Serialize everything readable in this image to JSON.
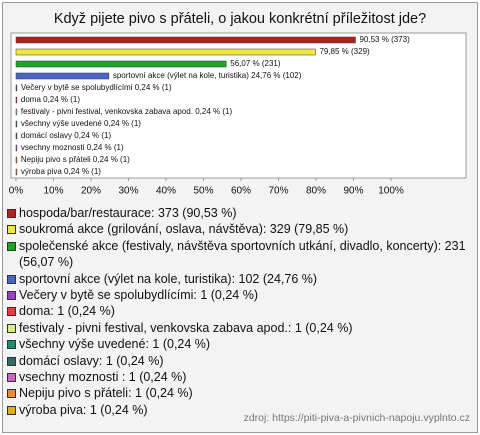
{
  "chart_data": {
    "type": "bar",
    "orientation": "horizontal",
    "title": "Když pijete pivo s přáteli, o jakou konkrétní příležitost jde?",
    "values": [
      90.53,
      79.85,
      56.07,
      24.76,
      0.24,
      0.24,
      0.24,
      0.24,
      0.24,
      0.24,
      0.24,
      0.24
    ],
    "value_labels": [
      "90,53 % (373)",
      "79,85 % (329)",
      "56,07 % (231)",
      "sportovní akce (výlet na kole, turistika) 24,76 % (102)",
      "Večery v bytě se spolubydlícími 0,24 % (1)",
      "doma 0,24 % (1)",
      "festivaly - pivni festival, venkovska zabava apod. 0,24 % (1)",
      "všechny výše uvedené 0,24 % (1)",
      "domácí oslavy 0,24 % (1)",
      "vsechny moznosti  0,24 % (1)",
      "Nepiju pivo s přáteli 0,24 % (1)",
      "výroba piva 0,24 % (1)"
    ],
    "colors": [
      "#b3221e",
      "#f2e641",
      "#1fa52a",
      "#4a64c8",
      "#9b3fc9",
      "#e0403a",
      "#d6ee8a",
      "#1f8a6e",
      "#2f6a66",
      "#c966c4",
      "#ee8a2e",
      "#dcae22"
    ],
    "legend_labels": [
      "hospoda/bar/restaurace: 373 (90,53 %)",
      "soukromá akce (grilování, oslava, návštěva): 329 (79,85 %)",
      "společenské akce (festivaly, návštěva sportovních utkání, divadlo, koncerty): 231 (56,07 %)",
      "sportovní akce (výlet na kole, turistika): 102 (24,76 %)",
      "Večery v bytě se spolubydlícími: 1 (0,24 %)",
      "doma: 1 (0,24 %)",
      "festivaly - pivni festival, venkovska zabava apod.: 1 (0,24 %)",
      "všechny výše uvedené: 1 (0,24 %)",
      "domácí oslavy: 1 (0,24 %)",
      "vsechny moznosti : 1 (0,24 %)",
      "Nepiju pivo s přáteli: 1 (0,24 %)",
      "výroba piva: 1 (0,24 %)"
    ],
    "xlim": [
      0,
      100
    ],
    "xticks": [
      {
        "value": 0,
        "label": "0%"
      },
      {
        "value": 10,
        "label": "10%"
      },
      {
        "value": 20,
        "label": "20%"
      },
      {
        "value": 30,
        "label": "30%"
      },
      {
        "value": 40,
        "label": "40%"
      },
      {
        "value": 50,
        "label": "50%"
      },
      {
        "value": 60,
        "label": "60%"
      },
      {
        "value": 70,
        "label": "70%"
      },
      {
        "value": 80,
        "label": "80%"
      },
      {
        "value": 90,
        "label": "90%"
      },
      {
        "value": 100,
        "label": "100%"
      }
    ],
    "source": "zdroj: https://piti-piva-a-pivnich-napoju.vyplnto.cz"
  }
}
